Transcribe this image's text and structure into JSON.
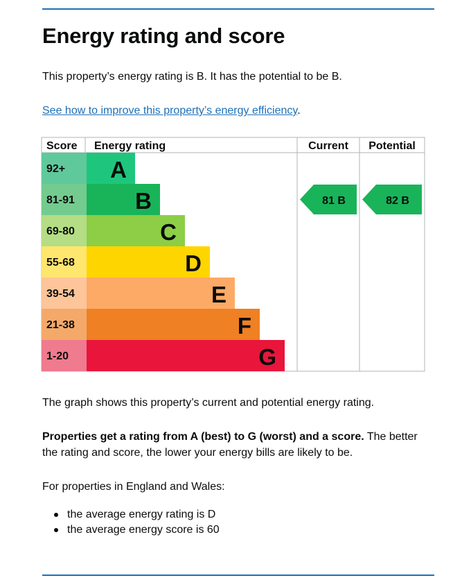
{
  "page": {
    "title": "Energy rating and score",
    "intro": "This property’s energy rating is B. It has the potential to be B.",
    "link_text": "See how to improve this property’s energy efficiency",
    "link_suffix": ".",
    "graph_caption": "The graph shows this property’s current and potential energy rating.",
    "rating_bold": "Properties get a rating from A (best) to G (worst) and a score.",
    "rating_rest": " The better the rating and score, the lower your energy bills are likely to be.",
    "region_intro": "For properties in England and Wales:",
    "bullets": [
      "the average energy rating is D",
      "the average energy score is 60"
    ]
  },
  "chart_data": {
    "type": "bar",
    "headers": {
      "score": "Score",
      "rating": "Energy rating",
      "current": "Current",
      "potential": "Potential"
    },
    "bands": [
      {
        "letter": "A",
        "range": "92+",
        "color": "#008054",
        "score_bg": "#60c99b"
      },
      {
        "letter": "B",
        "range": "81-91",
        "color": "#19b459",
        "score_bg": "#74cb8f"
      },
      {
        "letter": "C",
        "range": "69-80",
        "color": "#8dce46",
        "score_bg": "#b4dd85"
      },
      {
        "letter": "D",
        "range": "55-68",
        "color": "#ffd500",
        "score_bg": "#ffe66e"
      },
      {
        "letter": "E",
        "range": "39-54",
        "color": "#fcaa65",
        "score_bg": "#fdc599"
      },
      {
        "letter": "F",
        "range": "21-38",
        "color": "#ef8023",
        "score_bg": "#f4a96b"
      },
      {
        "letter": "G",
        "range": "1-20",
        "color": "#e9153b",
        "score_bg": "#f07a8e"
      }
    ],
    "band_a_color": "#1ec67d",
    "current": {
      "score": 81,
      "letter": "B",
      "label": "81  B",
      "color": "#19b459"
    },
    "potential": {
      "score": 82,
      "letter": "B",
      "label": "82  B",
      "color": "#19b459"
    }
  }
}
